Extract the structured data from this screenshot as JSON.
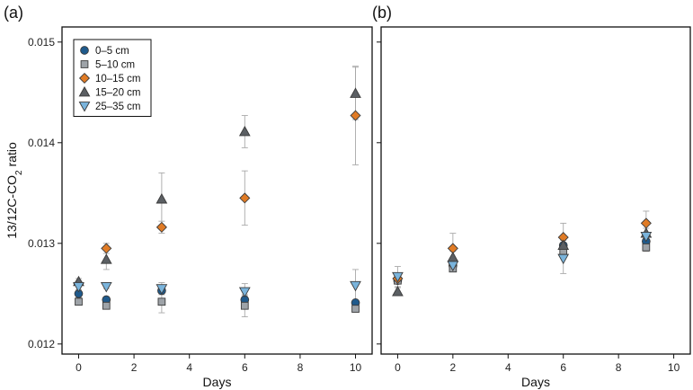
{
  "chart_data": [
    {
      "type": "scatter",
      "panel_label": "(a)",
      "xlabel": "Days",
      "ylabel": "13/12C-CO",
      "ylabel_sub": "2",
      "ylabel_suffix": " ratio",
      "xlim": [
        -0.6,
        10.6
      ],
      "ylim": [
        0.0119,
        0.01515
      ],
      "xticks": [
        0,
        2,
        4,
        6,
        8,
        10
      ],
      "yticks": [
        0.012,
        0.013,
        0.014,
        0.015
      ],
      "ytick_labels": [
        "0.012",
        "0.013",
        "0.014",
        "0.015"
      ],
      "legend": "top-left",
      "series": [
        {
          "name": "0–5 cm",
          "marker": "circle",
          "color": "#1f5a8c",
          "x": [
            0,
            1,
            3,
            6,
            10
          ],
          "y": [
            0.0125,
            0.01244,
            0.01253,
            0.01244,
            0.01241
          ],
          "err": [
            4e-05,
            3e-05,
            3e-05,
            4e-05,
            2e-05
          ]
        },
        {
          "name": "5–10 cm",
          "marker": "square",
          "color": "#9ea3a8",
          "x": [
            0,
            1,
            3,
            6,
            10
          ],
          "y": [
            0.01242,
            0.01238,
            0.01242,
            0.01238,
            0.01235
          ],
          "err": [
            2e-05,
            3e-05,
            0.00011,
            0.00011,
            3e-05
          ]
        },
        {
          "name": "10–15 cm",
          "marker": "diamond",
          "color": "#e07b25",
          "x": [
            0,
            1,
            3,
            6,
            10
          ],
          "y": [
            0.0126,
            0.01295,
            0.01316,
            0.01345,
            0.01427
          ],
          "err": [
            3e-05,
            5e-05,
            6e-05,
            0.00027,
            0.00049
          ]
        },
        {
          "name": "15–20 cm",
          "marker": "triangle-up",
          "color": "#5b5f63",
          "x": [
            0,
            1,
            3,
            6,
            10
          ],
          "y": [
            0.01262,
            0.01284,
            0.01344,
            0.01411,
            0.01449
          ],
          "err": [
            3e-05,
            0.0001,
            0.00026,
            0.00016,
            0.00026
          ]
        },
        {
          "name": "25–35 cm",
          "marker": "triangle-down",
          "color": "#7ab4dc",
          "x": [
            0,
            1,
            3,
            6,
            10
          ],
          "y": [
            0.01257,
            0.01257,
            0.01255,
            0.01252,
            0.01258
          ],
          "err": [
            3e-05,
            2e-05,
            6e-05,
            8e-05,
            0.00016
          ]
        }
      ]
    },
    {
      "type": "scatter",
      "panel_label": "(b)",
      "xlabel": "Days",
      "xlim": [
        -0.6,
        10.6
      ],
      "ylim": [
        0.0119,
        0.01515
      ],
      "xticks": [
        0,
        2,
        4,
        6,
        8,
        10
      ],
      "yticks": [
        0.012,
        0.013,
        0.014,
        0.015
      ],
      "series": [
        {
          "name": "0–5 cm",
          "marker": "circle",
          "color": "#1f5a8c",
          "x": [
            0,
            2,
            6,
            9
          ],
          "y": [
            0.01263,
            0.01278,
            0.01298,
            0.01302
          ],
          "err": [
            3e-05,
            4e-05,
            5e-05,
            5e-05
          ]
        },
        {
          "name": "5–10 cm",
          "marker": "square",
          "color": "#9ea3a8",
          "x": [
            0,
            2,
            6,
            9
          ],
          "y": [
            0.01263,
            0.01275,
            0.01292,
            0.01296
          ],
          "err": [
            3e-05,
            3e-05,
            4e-05,
            4e-05
          ]
        },
        {
          "name": "10–15 cm",
          "marker": "diamond",
          "color": "#e07b25",
          "x": [
            0,
            2,
            6,
            9
          ],
          "y": [
            0.01265,
            0.01295,
            0.01306,
            0.0132
          ],
          "err": [
            3e-05,
            0.00015,
            0.00014,
            0.00012
          ]
        },
        {
          "name": "15–20 cm",
          "marker": "triangle-up",
          "color": "#5b5f63",
          "x": [
            0,
            2,
            6,
            9
          ],
          "y": [
            0.01252,
            0.01286,
            0.01298,
            0.0131
          ],
          "err": [
            4e-05,
            6e-05,
            6e-05,
            5e-05
          ]
        },
        {
          "name": "25–35 cm",
          "marker": "triangle-down",
          "color": "#7ab4dc",
          "x": [
            0,
            2,
            6,
            9
          ],
          "y": [
            0.01267,
            0.01278,
            0.01285,
            0.01307
          ],
          "err": [
            0.0001,
            4e-05,
            0.00015,
            3e-05
          ]
        }
      ]
    }
  ]
}
